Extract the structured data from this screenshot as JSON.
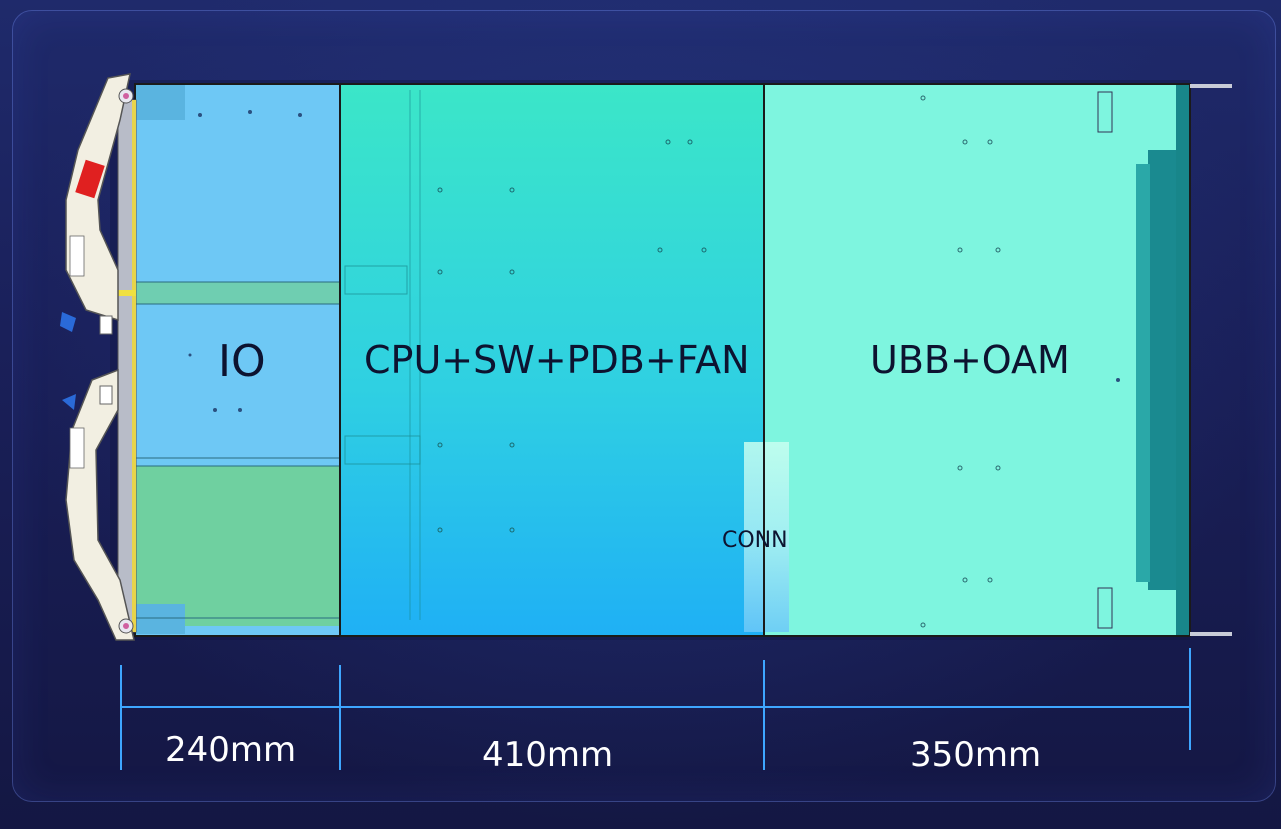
{
  "sections": [
    {
      "id": "io",
      "label": "IO",
      "color": "#6ec8f5"
    },
    {
      "id": "cpu",
      "label": "CPU+SW+PDB+FAN",
      "color": "#2fd2e0"
    },
    {
      "id": "ubb",
      "label": "UBB+OAM",
      "color": "#7ef5df"
    }
  ],
  "connector": {
    "label": "CONN"
  },
  "dimensions": [
    {
      "label": "240mm"
    },
    {
      "label": "410mm"
    },
    {
      "label": "350mm"
    }
  ],
  "colors": {
    "background": "#1a1f4f",
    "dimension_lines": "#3ea6ff",
    "frame": "#1a1a1a",
    "handle": "#f2efe2",
    "warning_tag": "#e02020"
  }
}
